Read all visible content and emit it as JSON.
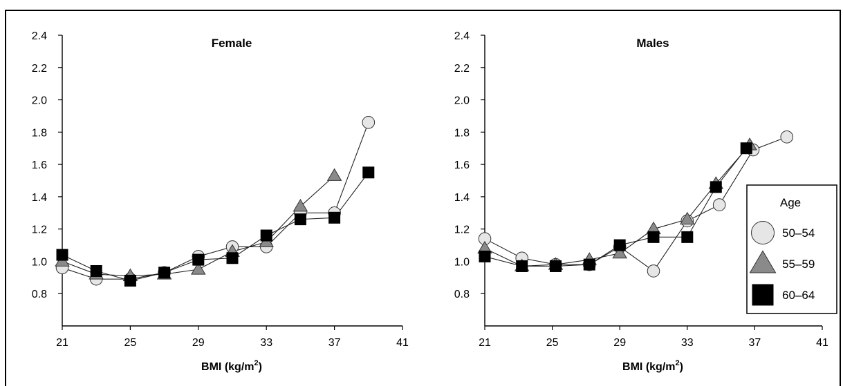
{
  "chart_data": [
    {
      "type": "line",
      "title": "Female",
      "xlabel": "BMI (kg/m",
      "xlabel_sup": "2",
      "xlabel_end": ")",
      "ylabel": "",
      "xlim": [
        21,
        41
      ],
      "ylim": [
        0.6,
        2.4
      ],
      "xticks": [
        21,
        25,
        29,
        33,
        37,
        41
      ],
      "xtick_labels": [
        "21",
        "25",
        "29",
        "33",
        "37",
        "41"
      ],
      "yticks": [
        0.8,
        1.0,
        1.2,
        1.4,
        1.6,
        1.8,
        2.0,
        2.2,
        2.4
      ],
      "ytick_labels": [
        "0.8",
        "1.0",
        "1.2",
        "1.4",
        "1.6",
        "1.8",
        "2.0",
        "2.2",
        "2.4"
      ],
      "series": [
        {
          "name": "50–54",
          "marker": "circle",
          "color": "#e6e6e6",
          "x": [
            21,
            23,
            25,
            27,
            29,
            31,
            33,
            35,
            37,
            39
          ],
          "y": [
            0.96,
            0.89,
            0.89,
            0.93,
            1.03,
            1.09,
            1.09,
            1.3,
            1.3,
            1.86
          ]
        },
        {
          "name": "55–59",
          "marker": "triangle",
          "color": "#8a8a8a",
          "x": [
            21,
            23,
            25,
            27,
            29,
            31,
            33,
            35,
            37
          ],
          "y": [
            1.0,
            0.92,
            0.91,
            0.92,
            0.95,
            1.06,
            1.12,
            1.34,
            1.53
          ]
        },
        {
          "name": "60–64",
          "marker": "square",
          "color": "#000000",
          "x": [
            21,
            23,
            25,
            27,
            29,
            31,
            33,
            35,
            37,
            39
          ],
          "y": [
            1.04,
            0.94,
            0.88,
            0.93,
            1.01,
            1.02,
            1.16,
            1.26,
            1.27,
            1.55
          ]
        }
      ]
    },
    {
      "type": "line",
      "title": "Males",
      "xlabel": "BMI (kg/m",
      "xlabel_sup": "2",
      "xlabel_end": ")",
      "ylabel": "",
      "xlim": [
        21,
        41
      ],
      "ylim": [
        0.6,
        2.4
      ],
      "xticks": [
        21,
        25,
        29,
        33,
        37,
        41
      ],
      "xtick_labels": [
        "21",
        "25",
        "29",
        "33",
        "37",
        "41"
      ],
      "yticks": [
        0.8,
        1.0,
        1.2,
        1.4,
        1.6,
        1.8,
        2.0,
        2.2,
        2.4
      ],
      "ytick_labels": [
        "0.8",
        "1.0",
        "1.2",
        "1.4",
        "1.6",
        "1.8",
        "2.0",
        "2.2",
        "2.4"
      ],
      "series": [
        {
          "name": "50–54",
          "marker": "circle",
          "color": "#e6e6e6",
          "x": [
            21,
            23.2,
            25.2,
            27.2,
            29,
            31,
            33,
            34.9,
            36.9,
            38.9
          ],
          "y": [
            1.14,
            1.02,
            0.98,
            0.98,
            1.09,
            0.94,
            1.25,
            1.35,
            1.69,
            1.77
          ]
        },
        {
          "name": "55–59",
          "marker": "triangle",
          "color": "#8a8a8a",
          "x": [
            21,
            23.2,
            25.2,
            27.2,
            29,
            31,
            33,
            34.7,
            36.7
          ],
          "y": [
            1.08,
            0.97,
            0.98,
            1.01,
            1.05,
            1.2,
            1.26,
            1.48,
            1.72
          ]
        },
        {
          "name": "60–64",
          "marker": "square",
          "color": "#000000",
          "x": [
            21,
            23.2,
            25.2,
            27.2,
            29,
            31,
            33,
            34.7,
            36.5
          ],
          "y": [
            1.03,
            0.97,
            0.97,
            0.98,
            1.1,
            1.15,
            1.15,
            1.46,
            1.7
          ]
        }
      ]
    }
  ],
  "legend": {
    "title": "Age",
    "items": [
      {
        "label": "50–54",
        "marker": "circle",
        "color": "#e6e6e6"
      },
      {
        "label": "55–59",
        "marker": "triangle",
        "color": "#8a8a8a"
      },
      {
        "label": "60–64",
        "marker": "square",
        "color": "#000000"
      }
    ]
  }
}
